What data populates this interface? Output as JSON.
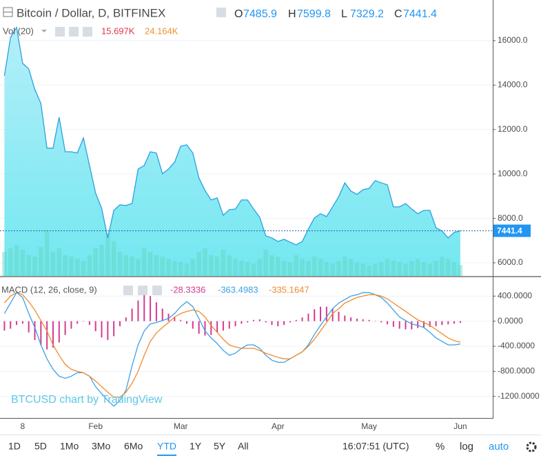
{
  "chart_data": [
    {
      "type": "area",
      "title": "Bitcoin / Dollar, D, BITFINEX",
      "ohlc_labels": [
        "O",
        "H",
        "L",
        "C"
      ],
      "ohlc": {
        "open": 7485.9,
        "high": 7599.8,
        "low": 7329.2
      },
      "categories": [
        null,
        null,
        null,
        "8",
        null,
        null,
        null,
        null,
        null,
        null,
        null,
        null,
        null,
        null,
        null,
        "Feb",
        null,
        null,
        null,
        null,
        null,
        null,
        null,
        null,
        null,
        null,
        null,
        null,
        null,
        "Mar",
        null,
        null,
        null,
        null,
        null,
        null,
        null,
        null,
        null,
        null,
        null,
        null,
        null,
        null,
        null,
        "Apr",
        null,
        null,
        null,
        null,
        null,
        null,
        null,
        null,
        null,
        null,
        null,
        null,
        null,
        null,
        "May",
        null,
        null,
        null,
        null,
        null,
        null,
        null,
        null,
        null,
        null,
        null,
        null,
        null,
        null,
        "Jun"
      ],
      "values": [
        14420,
        16130,
        16600,
        14980,
        14730,
        13800,
        13180,
        11160,
        11160,
        12550,
        11000,
        11000,
        10940,
        11620,
        10380,
        9140,
        8450,
        7120,
        8360,
        8610,
        8580,
        8670,
        10220,
        10380,
        11000,
        10940,
        10010,
        10220,
        10530,
        11250,
        11310,
        10940,
        9820,
        9260,
        8830,
        8920,
        8140,
        8390,
        8420,
        8830,
        8830,
        8420,
        8050,
        7210,
        7120,
        6960,
        7060,
        6930,
        6810,
        6960,
        7520,
        8020,
        8210,
        8080,
        8520,
        8980,
        9600,
        9230,
        9080,
        9290,
        9350,
        9700,
        9600,
        9510,
        8520,
        8520,
        8670,
        8420,
        8210,
        8360,
        8360,
        7580,
        7430,
        7120,
        7370,
        7441.4
      ],
      "color": "#2c9fe0",
      "fill_colors": [
        "#a6ecf8",
        "#5ae3ee"
      ],
      "ylim": [
        5410,
        17830
      ],
      "yticks": [
        {
          "value": 6000,
          "label": "6000.0"
        },
        {
          "value": 8000,
          "label": "8000.0"
        },
        {
          "value": 10000,
          "label": "10000.0"
        },
        {
          "value": 12000,
          "label": "12000.0"
        },
        {
          "value": 14000,
          "label": "14000.0"
        },
        {
          "value": 16000,
          "label": "16000.0"
        }
      ],
      "grid": true,
      "volume": {
        "name": "Vol (20)",
        "value_label": "15.697K",
        "ma_label": "24.164K",
        "color": "#62d4bd",
        "label_color": "#e0344a",
        "ma_color": "#f0902c",
        "vlim": [
          0,
          400000
        ],
        "values": [
          35000,
          40000,
          45000,
          38000,
          30000,
          28000,
          42000,
          66000,
          35000,
          40000,
          30000,
          28000,
          25000,
          22000,
          30000,
          40000,
          45000,
          62000,
          50000,
          35000,
          30000,
          28000,
          25000,
          40000,
          35000,
          30000,
          28000,
          25000,
          22000,
          20000,
          18000,
          25000,
          35000,
          40000,
          30000,
          28000,
          38000,
          30000,
          25000,
          22000,
          20000,
          18000,
          25000,
          38000,
          30000,
          28000,
          22000,
          20000,
          30000,
          25000,
          22000,
          28000,
          25000,
          20000,
          18000,
          22000,
          28000,
          25000,
          20000,
          18000,
          15000,
          18000,
          20000,
          25000,
          22000,
          20000,
          18000,
          22000,
          25000,
          20000,
          18000,
          22000,
          28000,
          25000,
          20000,
          15697
        ]
      }
    },
    {
      "type": "macd",
      "title": "MACD (12, 26, close, 9)",
      "series": [
        {
          "color": "#d6398f",
          "values": [
            -150,
            -120,
            -60,
            -40,
            -180,
            -300,
            -380,
            -450,
            -420,
            -340,
            -220,
            -120,
            -40,
            0,
            -60,
            -160,
            -260,
            -300,
            -240,
            -80,
            60,
            200,
            330,
            420,
            400,
            300,
            200,
            120,
            60,
            20,
            -40,
            -120,
            -200,
            -230,
            -220,
            -180,
            -150,
            -120,
            -80,
            -40,
            -20,
            20,
            30,
            -20,
            -60,
            -80,
            -60,
            -20,
            20,
            60,
            120,
            190,
            230,
            230,
            200,
            150,
            90,
            60,
            40,
            30,
            20,
            0,
            -20,
            -50,
            -90,
            -120,
            -130,
            -130,
            -110,
            -100,
            -90,
            -80,
            -60,
            -50,
            -40,
            -28.3336
          ]
        },
        {
          "color": "#3aa0e8",
          "values": [
            122,
            289,
            456,
            378,
            122,
            -100,
            -378,
            -600,
            -767,
            -878,
            -911,
            -878,
            -822,
            -822,
            -878,
            -1044,
            -1155,
            -1266,
            -1355,
            -1266,
            -1100,
            -711,
            -378,
            -156,
            -44,
            -22,
            11,
            44,
            122,
            233,
            311,
            233,
            44,
            -156,
            -267,
            -356,
            -467,
            -544,
            -511,
            -433,
            -378,
            -378,
            -433,
            -544,
            -622,
            -656,
            -656,
            -600,
            -544,
            -489,
            -378,
            -211,
            -67,
            67,
            200,
            289,
            344,
            400,
            422,
            456,
            456,
            422,
            378,
            289,
            178,
            67,
            11,
            -44,
            -67,
            -100,
            -178,
            -267,
            -322,
            -378,
            -378,
            -363.4983
          ]
        },
        {
          "color": "#f08a2c",
          "values": [
            289,
            400,
            456,
            422,
            311,
            178,
            11,
            -156,
            -378,
            -544,
            -689,
            -767,
            -800,
            -822,
            -878,
            -956,
            -1044,
            -1133,
            -1211,
            -1211,
            -1133,
            -989,
            -800,
            -544,
            -322,
            -189,
            -100,
            -22,
            67,
            122,
            156,
            178,
            156,
            67,
            -67,
            -178,
            -289,
            -378,
            -411,
            -433,
            -433,
            -433,
            -467,
            -511,
            -544,
            -578,
            -600,
            -600,
            -544,
            -489,
            -400,
            -289,
            -156,
            -22,
            122,
            200,
            289,
            333,
            378,
            400,
            422,
            422,
            400,
            356,
            289,
            222,
            156,
            89,
            22,
            -22,
            -67,
            -133,
            -200,
            -267,
            -311,
            -335.1647
          ]
        }
      ],
      "ylim": [
        -1544,
        700
      ],
      "yticks": [
        {
          "value": 400,
          "label": "400.0000"
        },
        {
          "value": 0,
          "label": "0.0000"
        },
        {
          "value": -400,
          "label": "-400.0000"
        },
        {
          "value": -800,
          "label": "-800.0000"
        },
        {
          "value": -1200,
          "label": "-1200.0000"
        }
      ],
      "grid": true
    }
  ],
  "watermark": "BTCUSD chart by TradingView",
  "toolbar": {
    "ranges": [
      "1D",
      "5D",
      "1Mo",
      "3Mo",
      "6Mo",
      "YTD",
      "1Y",
      "5Y",
      "All"
    ],
    "active": "YTD",
    "time": "16:07:51 (UTC)",
    "options": [
      "%",
      "log",
      "auto"
    ]
  }
}
